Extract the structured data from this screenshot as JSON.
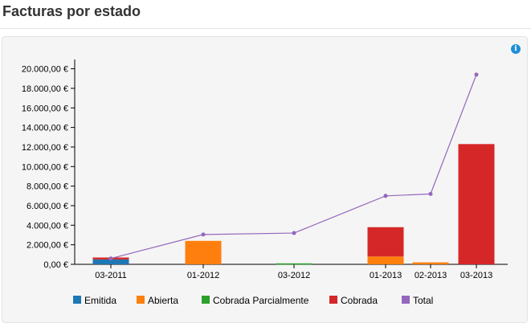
{
  "header": {
    "title": "Facturas por estado"
  },
  "info_icon": {
    "glyph": "i",
    "name": "info-icon"
  },
  "chart_data": {
    "type": "bar",
    "stacked": true,
    "categories": [
      "03-2011",
      "01-2012",
      "03-2012",
      "01-2013",
      "02-2013",
      "03-2013"
    ],
    "series": [
      {
        "name": "Emitida",
        "color": "#1f77b4",
        "values": [
          500,
          0,
          0,
          0,
          0,
          0
        ]
      },
      {
        "name": "Abierta",
        "color": "#ff7f0e",
        "values": [
          0,
          2400,
          0,
          800,
          200,
          0
        ]
      },
      {
        "name": "Cobrada Parcialmente",
        "color": "#2ca02c",
        "values": [
          0,
          0,
          100,
          0,
          0,
          0
        ]
      },
      {
        "name": "Cobrada",
        "color": "#d62728",
        "values": [
          200,
          0,
          0,
          3000,
          0,
          12300
        ]
      }
    ],
    "line_series": {
      "name": "Total",
      "color": "#9467bd",
      "values": [
        600,
        3050,
        3200,
        7000,
        7200,
        19400
      ]
    },
    "y_ticks": [
      "0,00 €",
      "2.000,00 €",
      "4.000,00 €",
      "6.000,00 €",
      "8.000,00 €",
      "10.000,00 €",
      "12.000,00 €",
      "14.000,00 €",
      "16.000,00 €",
      "18.000,00 €",
      "20.000,00 €"
    ],
    "ylim": [
      0,
      20000
    ],
    "grid": false,
    "legend_position": "bottom"
  }
}
